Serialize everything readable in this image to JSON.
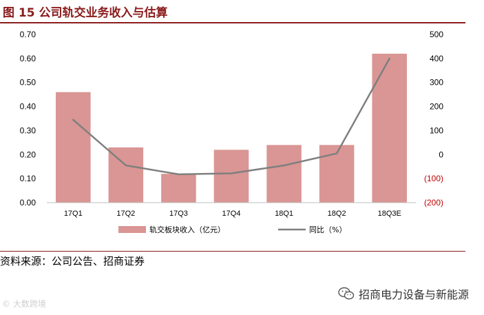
{
  "header": {
    "title": "图 15  公司轨交业务收入与估算"
  },
  "chart_data": {
    "type": "bar",
    "categories": [
      "17Q1",
      "17Q2",
      "17Q3",
      "17Q4",
      "18Q1",
      "18Q2",
      "18Q3E"
    ],
    "series": [
      {
        "name": "轨交板块收入（亿元）",
        "type": "bar",
        "axis": "left",
        "color": "#d99694",
        "values": [
          0.46,
          0.23,
          0.12,
          0.22,
          0.24,
          0.24,
          0.62
        ]
      },
      {
        "name": "同比（%）",
        "type": "line",
        "axis": "right",
        "color": "#7f7f7f",
        "values": [
          145,
          -45,
          -82,
          -78,
          -45,
          5,
          400
        ]
      }
    ],
    "ylim": [
      0,
      0.7
    ],
    "y2lim": [
      -200,
      500
    ],
    "yticks": [
      "0.00",
      "0.10",
      "0.20",
      "0.30",
      "0.40",
      "0.50",
      "0.60",
      "0.70"
    ],
    "y2ticks": [
      "(200)",
      "(100)",
      "0",
      "100",
      "200",
      "300",
      "400",
      "500"
    ],
    "negative_tick_color": "#c00000",
    "grid": false,
    "legend": "bottom"
  },
  "footer": {
    "source": "资料来源：公司公告、招商证券",
    "watermark_left": "© 大数跨境",
    "watermark_right": "招商电力设备与新能源"
  }
}
